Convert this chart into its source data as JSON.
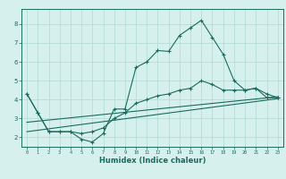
{
  "xlabel": "Humidex (Indice chaleur)",
  "ylabel": "",
  "xlim": [
    -0.5,
    23.5
  ],
  "ylim": [
    1.5,
    8.8
  ],
  "xtick_vals": [
    0,
    1,
    2,
    3,
    4,
    5,
    6,
    7,
    8,
    9,
    10,
    11,
    12,
    13,
    14,
    15,
    16,
    17,
    18,
    19,
    20,
    21,
    22,
    23
  ],
  "xtick_labels": [
    "0",
    "1",
    "2",
    "3",
    "4",
    "5",
    "6",
    "7",
    "8",
    "9",
    "10",
    "11",
    "12",
    "13",
    "14",
    "15",
    "16",
    "17",
    "18",
    "19",
    "20",
    "21",
    "22",
    "23"
  ],
  "ytick_vals": [
    2,
    3,
    4,
    5,
    6,
    7,
    8
  ],
  "ytick_labels": [
    "2",
    "3",
    "4",
    "5",
    "6",
    "7",
    "8"
  ],
  "background_color": "#d6f0ed",
  "grid_color": "#b0d8d2",
  "line_color": "#1a6b5e",
  "line1_x": [
    0,
    1,
    2,
    3,
    4,
    5,
    6,
    7,
    8,
    9,
    10,
    11,
    12,
    13,
    14,
    15,
    16,
    17,
    18,
    19,
    20,
    21,
    22,
    23
  ],
  "line1_y": [
    4.3,
    3.3,
    2.3,
    2.3,
    2.3,
    1.9,
    1.75,
    2.2,
    3.5,
    3.5,
    5.7,
    6.0,
    6.6,
    6.55,
    7.4,
    7.8,
    8.2,
    7.3,
    6.4,
    5.0,
    4.5,
    4.6,
    4.1,
    4.1
  ],
  "line2_x": [
    0,
    1,
    2,
    3,
    4,
    5,
    6,
    7,
    8,
    9,
    10,
    11,
    12,
    13,
    14,
    15,
    16,
    17,
    18,
    19,
    20,
    21,
    22,
    23
  ],
  "line2_y": [
    4.3,
    3.3,
    2.3,
    2.3,
    2.3,
    2.2,
    2.3,
    2.5,
    3.0,
    3.3,
    3.8,
    4.0,
    4.2,
    4.3,
    4.5,
    4.6,
    5.0,
    4.8,
    4.5,
    4.5,
    4.5,
    4.6,
    4.3,
    4.1
  ],
  "line3_x": [
    0,
    23
  ],
  "line3_y": [
    2.8,
    4.15
  ],
  "line4_x": [
    0,
    23
  ],
  "line4_y": [
    2.3,
    4.05
  ]
}
